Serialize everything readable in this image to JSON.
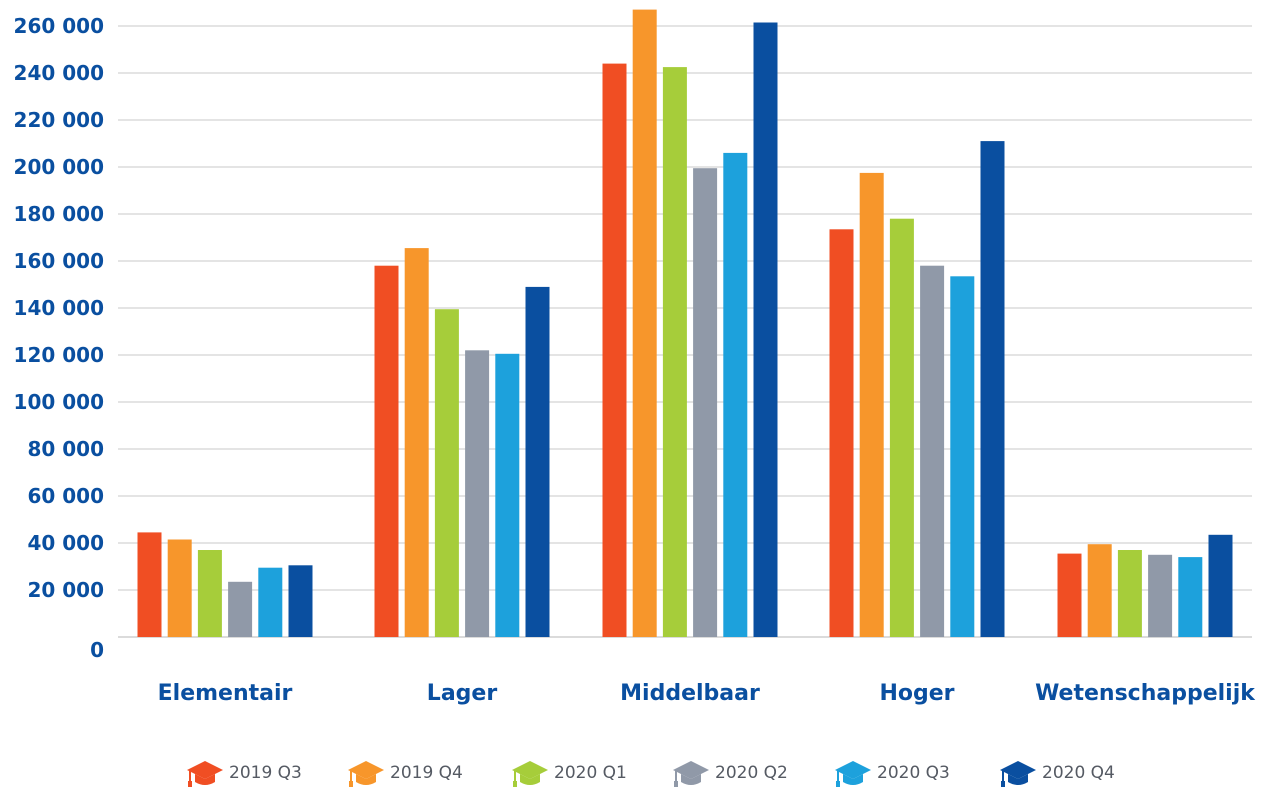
{
  "chart_data": {
    "type": "bar",
    "title": "",
    "xlabel": "",
    "ylabel": "",
    "ylim": [
      0,
      260000
    ],
    "yticks": [
      0,
      20000,
      40000,
      60000,
      80000,
      100000,
      120000,
      140000,
      160000,
      180000,
      200000,
      220000,
      240000,
      260000
    ],
    "ytick_labels": [
      "0",
      "20 000",
      "40 000",
      "60 000",
      "80 000",
      "100 000",
      "120 000",
      "140 000",
      "160 000",
      "180 000",
      "200 000",
      "220 000",
      "240 000",
      "260 000"
    ],
    "grid": true,
    "legend_position": "bottom",
    "legend_icon": "graduation-cap-icon",
    "categories": [
      "Elementair",
      "Lager",
      "Middelbaar",
      "Hoger",
      "Wetenschappelijk"
    ],
    "series": [
      {
        "name": "2019 Q3",
        "color": "#f04e23",
        "values": [
          44500,
          158000,
          244000,
          173500,
          35500
        ]
      },
      {
        "name": "2019 Q4",
        "color": "#f7962b",
        "values": [
          41500,
          165500,
          267000,
          197500,
          39500
        ]
      },
      {
        "name": "2020 Q1",
        "color": "#a6cd3a",
        "values": [
          37000,
          139500,
          242500,
          178000,
          37000
        ]
      },
      {
        "name": "2020 Q2",
        "color": "#9099a8",
        "values": [
          23500,
          122000,
          199500,
          158000,
          35000
        ]
      },
      {
        "name": "2020 Q3",
        "color": "#1da1dc",
        "values": [
          29500,
          120500,
          206000,
          153500,
          34000
        ]
      },
      {
        "name": "2020 Q4",
        "color": "#0a4fa0",
        "values": [
          30500,
          149000,
          261500,
          211000,
          43500
        ]
      }
    ]
  }
}
